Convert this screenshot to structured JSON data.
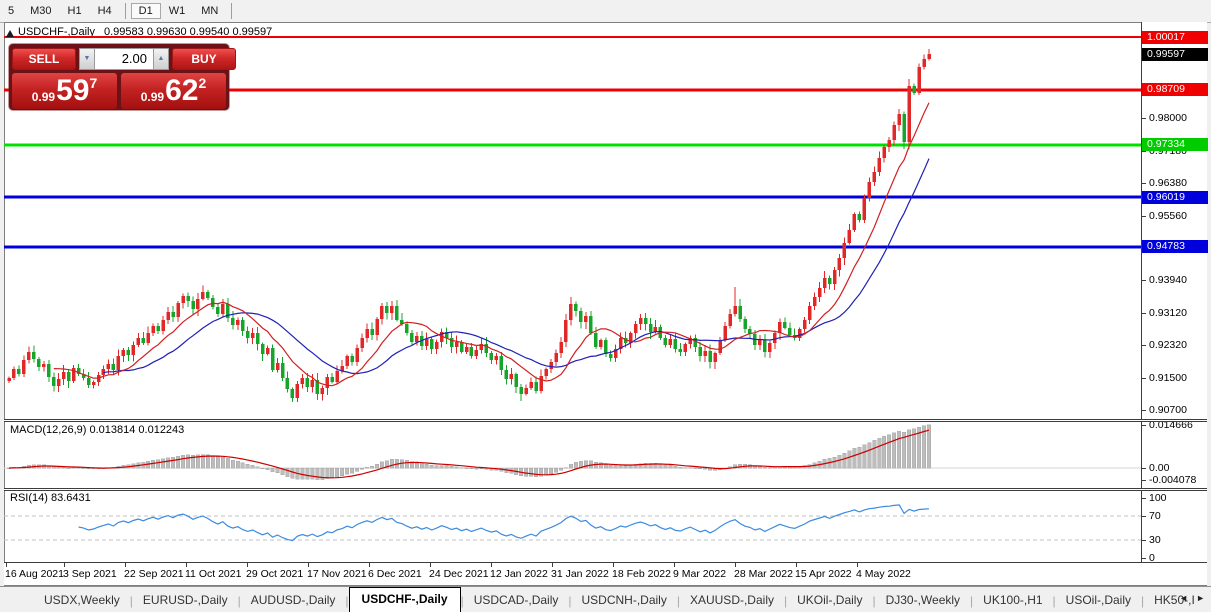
{
  "toolbar": {
    "items": [
      {
        "label": "5"
      },
      {
        "label": "M30"
      },
      {
        "label": "H1"
      },
      {
        "label": "H4"
      },
      {
        "sep": true
      },
      {
        "label": "D1",
        "active": true
      },
      {
        "label": "W1"
      },
      {
        "label": "MN"
      },
      {
        "sep": true
      }
    ]
  },
  "chart_header": {
    "marker": "triangle-up",
    "title": "USDCHF-,Daily",
    "ohlc": "0.99583 0.99630 0.99540 0.99597"
  },
  "trade_panel": {
    "sell_label": "SELL",
    "buy_label": "BUY",
    "volume": "2.00",
    "down_arrow": "▼",
    "up_arrow": "▲",
    "sell_price": {
      "prefix": "0.99",
      "big": "59",
      "sup": "7"
    },
    "buy_price": {
      "prefix": "0.99",
      "big": "62",
      "sup": "2"
    }
  },
  "price_axis": {
    "plain_ticks": [
      "0.98000",
      "0.97180",
      "0.96380",
      "0.95560",
      "0.93940",
      "0.93120",
      "0.92320",
      "0.91500",
      "0.90700"
    ],
    "badges": [
      {
        "text": "1.00017",
        "bg": "#f00000"
      },
      {
        "text": "0.99597",
        "bg": "#000000"
      },
      {
        "text": "0.98709",
        "bg": "#f00000"
      },
      {
        "text": "0.97334",
        "bg": "#00cc00"
      },
      {
        "text": "0.96019",
        "bg": "#0000dc"
      },
      {
        "text": "0.94783",
        "bg": "#0000dc"
      }
    ]
  },
  "macd_panel": {
    "label": "MACD(12,26,9) 0.013814 0.012243",
    "ticks": [
      {
        "text": "0.014666",
        "v": 0.014666
      },
      {
        "text": "0.00",
        "v": 0
      },
      {
        "text": "-0.004078",
        "v": -0.004078
      }
    ]
  },
  "rsi_panel": {
    "label": "RSI(14) 83.6431",
    "ticks": [
      {
        "text": "100",
        "v": 100
      },
      {
        "text": "70",
        "v": 70
      },
      {
        "text": "30",
        "v": 30
      },
      {
        "text": "0",
        "v": 0
      }
    ],
    "guides": [
      70,
      30
    ]
  },
  "x_axis": {
    "labels": [
      "16 Aug 2021",
      "3 Sep 2021",
      "22 Sep 2021",
      "11 Oct 2021",
      "29 Oct 2021",
      "17 Nov 2021",
      "6 Dec 2021",
      "24 Dec 2021",
      "12 Jan 2022",
      "31 Jan 2022",
      "18 Feb 2022",
      "9 Mar 2022",
      "28 Mar 2022",
      "15 Apr 2022",
      "4 May 2022"
    ]
  },
  "tab_bar": {
    "tabs": [
      "USDX,Weekly",
      "EURUSD-,Daily",
      "AUDUSD-,Daily",
      "USDCHF-,Daily",
      "USDCAD-,Daily",
      "USDCNH-,Daily",
      "XAUUSD-,Daily",
      "UKOil-,Daily",
      "DJ30-,Weekly",
      "UK100-,H1",
      "USOil-,Daily",
      "HK50-,I"
    ],
    "active": "USDCHF-,Daily",
    "scroll_left": "◄",
    "scroll_right": "►"
  },
  "chart_data": {
    "type": "candlestick",
    "symbol": "USDCHF-",
    "timeframe": "Daily",
    "open": "0.99583",
    "high": "0.99630",
    "low": "0.99540",
    "close": "0.99597",
    "price_range": [
      0.905,
      1.0035
    ],
    "first_open": 0.9142,
    "closes": [
      0.915,
      0.9172,
      0.916,
      0.9195,
      0.9215,
      0.9198,
      0.9178,
      0.9185,
      0.9152,
      0.913,
      0.9148,
      0.9165,
      0.9142,
      0.9175,
      0.916,
      0.915,
      0.9132,
      0.914,
      0.9158,
      0.9172,
      0.9185,
      0.917,
      0.9205,
      0.922,
      0.9208,
      0.9232,
      0.925,
      0.9238,
      0.9262,
      0.928,
      0.9268,
      0.9295,
      0.9315,
      0.9302,
      0.9338,
      0.9355,
      0.9342,
      0.9322,
      0.9348,
      0.9365,
      0.935,
      0.9328,
      0.931,
      0.9335,
      0.93,
      0.9282,
      0.9295,
      0.9268,
      0.925,
      0.9262,
      0.9235,
      0.921,
      0.9225,
      0.917,
      0.9188,
      0.915,
      0.9122,
      0.91,
      0.9135,
      0.915,
      0.9128,
      0.9145,
      0.911,
      0.9125,
      0.9152,
      0.914,
      0.9168,
      0.918,
      0.9205,
      0.919,
      0.9225,
      0.925,
      0.9272,
      0.9258,
      0.9298,
      0.933,
      0.9312,
      0.933,
      0.9295,
      0.9285,
      0.9262,
      0.924,
      0.9255,
      0.923,
      0.9248,
      0.9222,
      0.924,
      0.9265,
      0.925,
      0.9228,
      0.924,
      0.9215,
      0.9228,
      0.9205,
      0.922,
      0.9235,
      0.9212,
      0.9195,
      0.9205,
      0.917,
      0.9148,
      0.916,
      0.9128,
      0.911,
      0.9125,
      0.914,
      0.9118,
      0.9155,
      0.9172,
      0.919,
      0.9212,
      0.924,
      0.9295,
      0.9335,
      0.9318,
      0.929,
      0.9305,
      0.9262,
      0.9228,
      0.9245,
      0.921,
      0.92,
      0.9222,
      0.925,
      0.9238,
      0.9262,
      0.9285,
      0.93,
      0.9285,
      0.9265,
      0.9278,
      0.925,
      0.9232,
      0.9248,
      0.9222,
      0.9215,
      0.9235,
      0.925,
      0.9228,
      0.9205,
      0.9218,
      0.919,
      0.9212,
      0.9245,
      0.928,
      0.931,
      0.933,
      0.9298,
      0.9272,
      0.926,
      0.9232,
      0.9245,
      0.9215,
      0.9238,
      0.9262,
      0.929,
      0.9275,
      0.9258,
      0.925,
      0.9272,
      0.9295,
      0.933,
      0.9352,
      0.9375,
      0.94,
      0.9385,
      0.942,
      0.945,
      0.9488,
      0.952,
      0.956,
      0.9545,
      0.96,
      0.964,
      0.9665,
      0.97,
      0.9728,
      0.9745,
      0.9782,
      0.981,
      0.974,
      0.988,
      0.9862,
      0.9928,
      0.9948,
      0.996
    ],
    "wick_overrides": {
      "146": [
        0.0048,
        0.0006
      ],
      "180": [
        0.0006,
        0.0018
      ],
      "185": [
        0.0012,
        0.0004
      ]
    },
    "levels": [
      {
        "price": 1.00017,
        "color": "#f00000",
        "w": 2
      },
      {
        "price": 0.98709,
        "color": "#f00000",
        "w": 3
      },
      {
        "price": 0.97334,
        "color": "#00e000",
        "w": 3
      },
      {
        "price": 0.96019,
        "color": "#0000dc",
        "w": 3
      },
      {
        "price": 0.94783,
        "color": "#0000dc",
        "w": 3
      }
    ],
    "ma_fast": {
      "period": 10,
      "color": "#d02020"
    },
    "ma_slow": {
      "period": 20,
      "color": "#2020b8"
    },
    "macd": {
      "fast": 12,
      "slow": 26,
      "signal": 9,
      "axis_range": [
        -0.004078,
        0.014666
      ],
      "main_value": 0.013814,
      "signal_value": 0.012243,
      "histogram_color": "#bdbdbd",
      "signal_color": "#cc0000"
    },
    "rsi": {
      "period": 14,
      "value": 83.6431,
      "color": "#3b8be0",
      "guides": [
        70,
        30
      ]
    },
    "candle_colors": {
      "up": "#e02828",
      "down": "#17a42a"
    },
    "date_labels": [
      "16 Aug 2021",
      "3 Sep 2021",
      "22 Sep 2021",
      "11 Oct 2021",
      "29 Oct 2021",
      "17 Nov 2021",
      "6 Dec 2021",
      "24 Dec 2021",
      "12 Jan 2022",
      "31 Jan 2022",
      "18 Feb 2022",
      "9 Mar 2022",
      "28 Mar 2022",
      "15 Apr 2022",
      "4 May 2022"
    ]
  }
}
